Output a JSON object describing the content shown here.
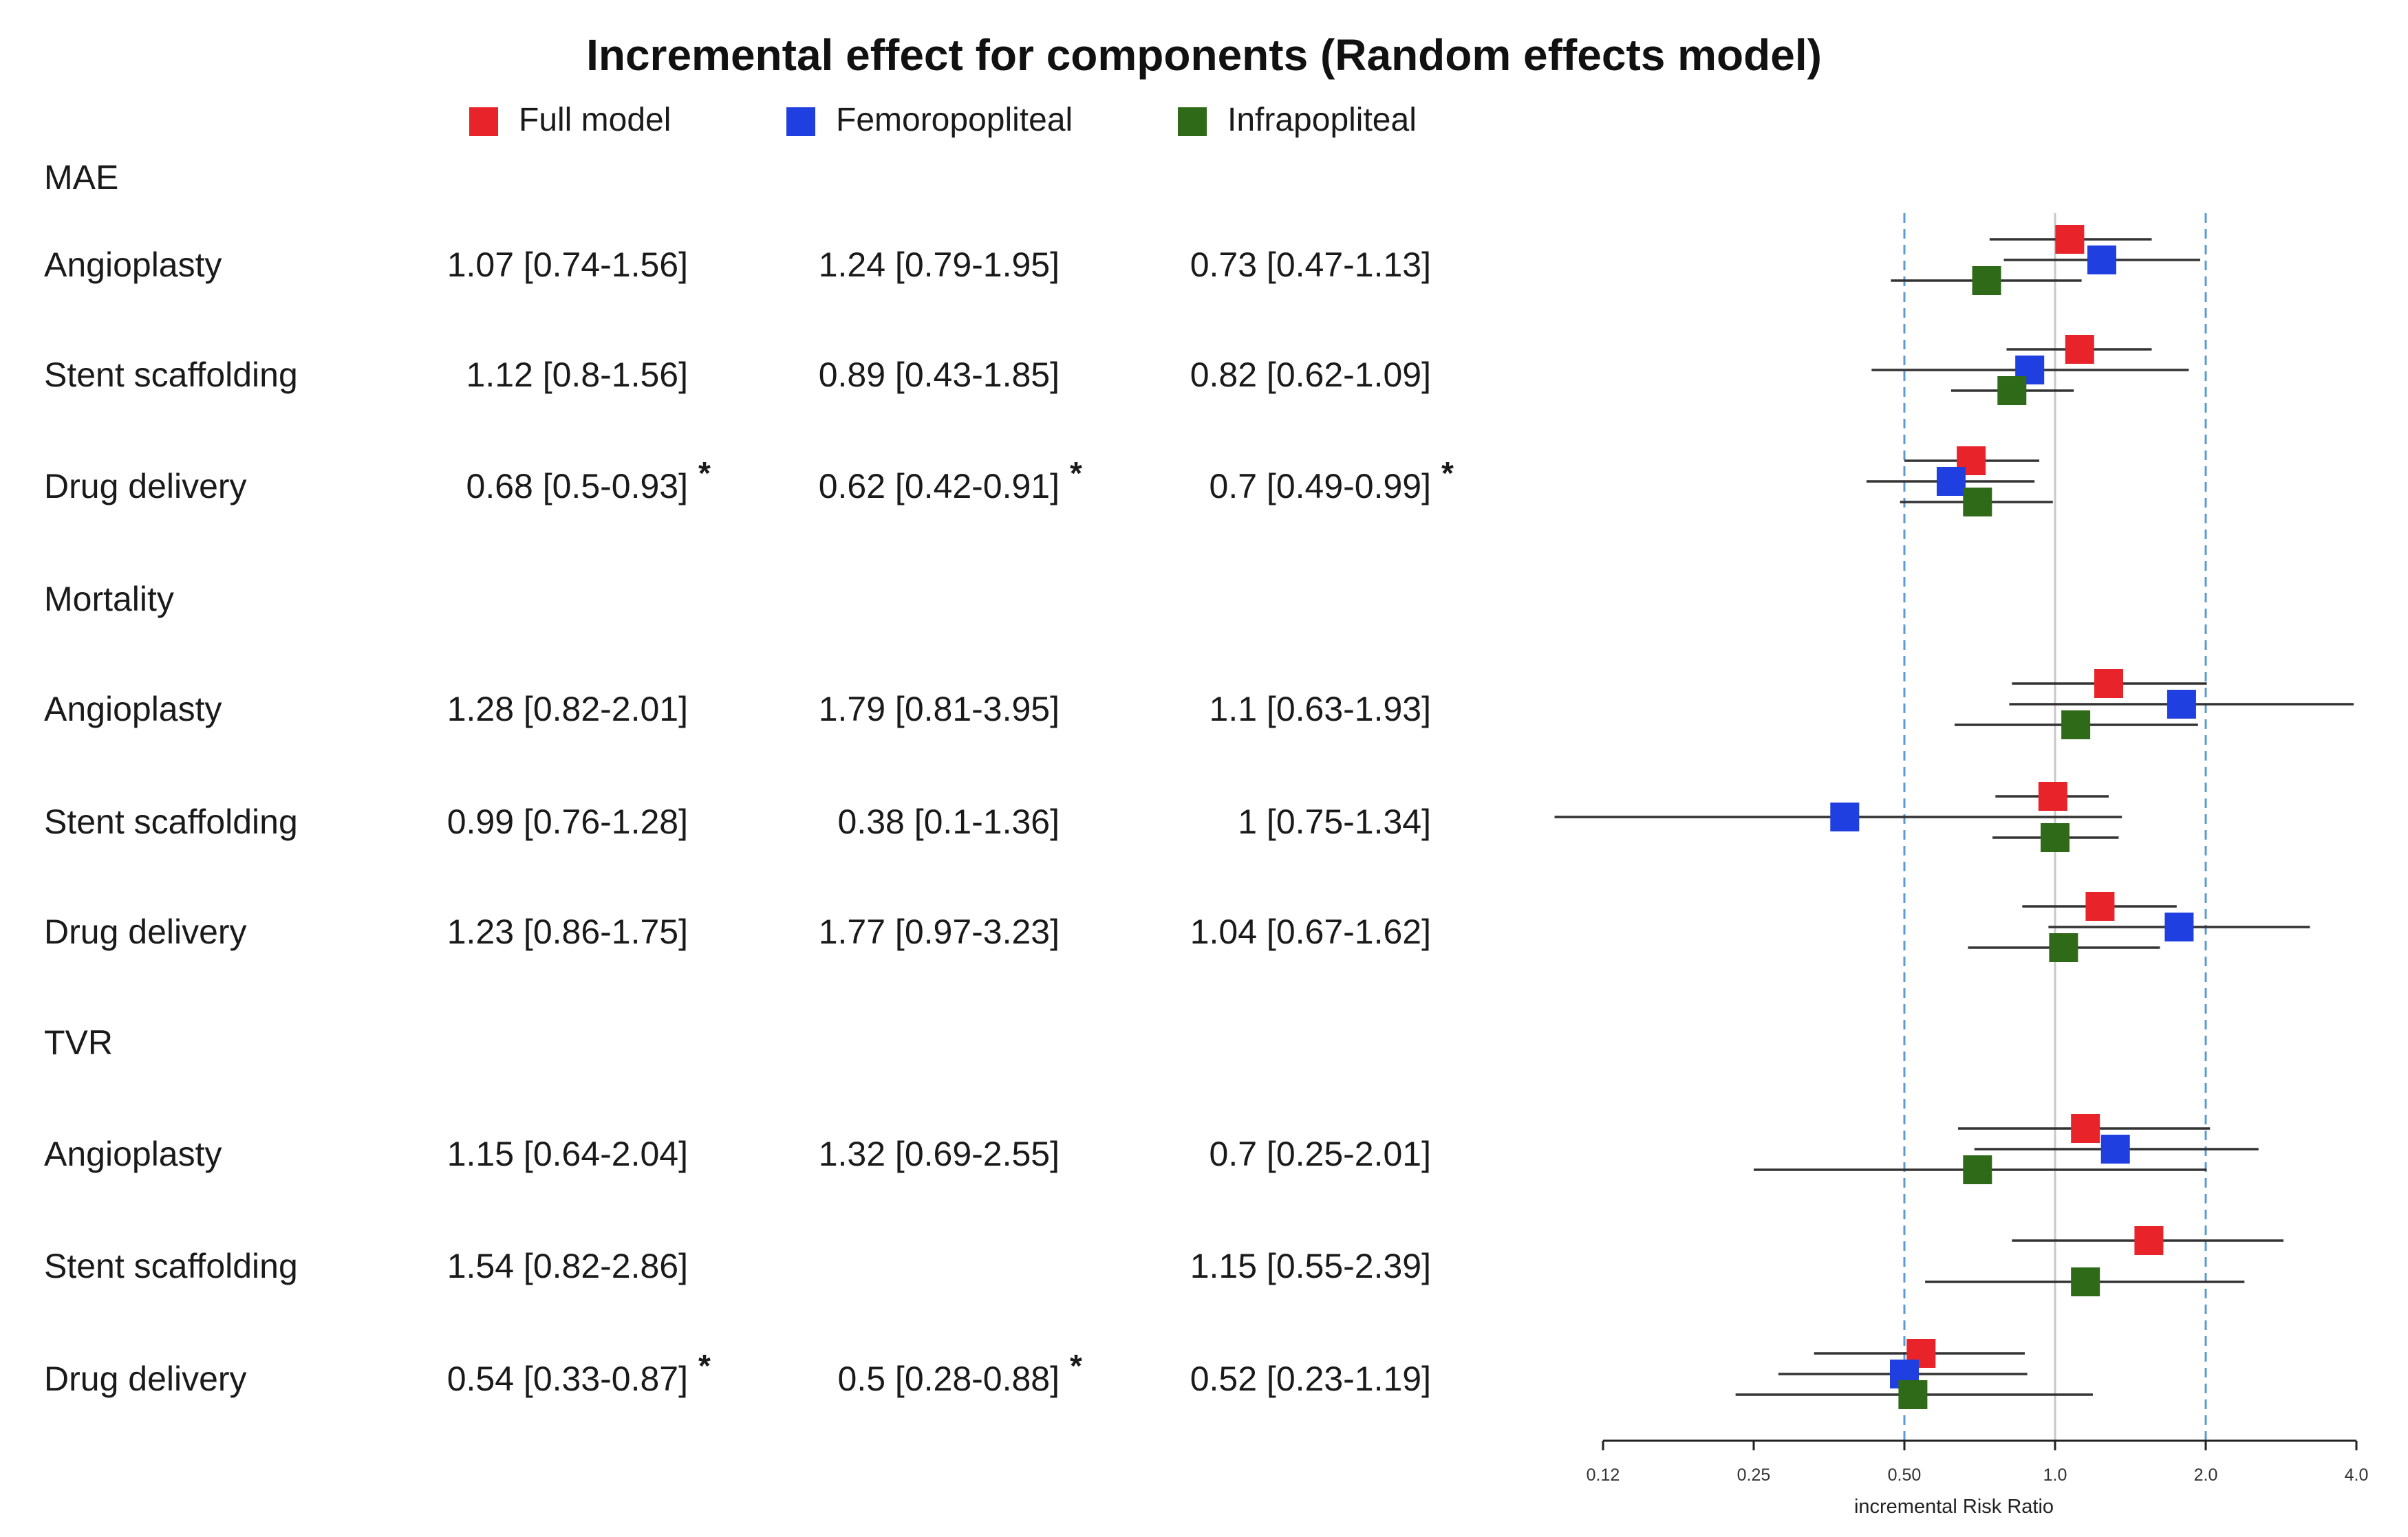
{
  "chart_data": {
    "type": "forest",
    "title": "Incremental effect for components (Random effects model)",
    "xlabel": "incremental Risk Ratio",
    "scale": "log2",
    "xlim": [
      0.125,
      4.0
    ],
    "ticks": [
      {
        "value": 0.125,
        "label": "0.12"
      },
      {
        "value": 0.25,
        "label": "0.25"
      },
      {
        "value": 0.5,
        "label": "0.50"
      },
      {
        "value": 1.0,
        "label": "1.0"
      },
      {
        "value": 2.0,
        "label": "2.0"
      },
      {
        "value": 4.0,
        "label": "4.0"
      }
    ],
    "reference_line": 1.0,
    "dashed_lines": [
      0.5,
      2.0
    ],
    "colors": {
      "full": "#e8242a",
      "femoro": "#1f3fe0",
      "infra": "#2e6a18"
    },
    "legend": [
      {
        "key": "full",
        "name": "Full model"
      },
      {
        "key": "femoro",
        "name": "Femoropopliteal"
      },
      {
        "key": "infra",
        "name": "Infrapopliteal"
      }
    ],
    "groups": [
      {
        "name": "MAE",
        "rows": [
          {
            "label": "Angioplasty",
            "full": {
              "text": "1.07 [0.74-1.56]",
              "est": 1.07,
              "lo": 0.74,
              "hi": 1.56,
              "sig": false
            },
            "femoro": {
              "text": "1.24 [0.79-1.95]",
              "est": 1.24,
              "lo": 0.79,
              "hi": 1.95,
              "sig": false
            },
            "infra": {
              "text": "0.73 [0.47-1.13]",
              "est": 0.73,
              "lo": 0.47,
              "hi": 1.13,
              "sig": false
            }
          },
          {
            "label": "Stent scaffolding",
            "full": {
              "text": "1.12 [0.8-1.56]",
              "est": 1.12,
              "lo": 0.8,
              "hi": 1.56,
              "sig": false
            },
            "femoro": {
              "text": "0.89 [0.43-1.85]",
              "est": 0.89,
              "lo": 0.43,
              "hi": 1.85,
              "sig": false
            },
            "infra": {
              "text": "0.82 [0.62-1.09]",
              "est": 0.82,
              "lo": 0.62,
              "hi": 1.09,
              "sig": false
            }
          },
          {
            "label": "Drug delivery",
            "full": {
              "text": "0.68 [0.5-0.93]",
              "est": 0.68,
              "lo": 0.5,
              "hi": 0.93,
              "sig": true
            },
            "femoro": {
              "text": "0.62 [0.42-0.91]",
              "est": 0.62,
              "lo": 0.42,
              "hi": 0.91,
              "sig": true
            },
            "infra": {
              "text": "0.7 [0.49-0.99]",
              "est": 0.7,
              "lo": 0.49,
              "hi": 0.99,
              "sig": true
            }
          }
        ]
      },
      {
        "name": "Mortality",
        "rows": [
          {
            "label": "Angioplasty",
            "full": {
              "text": "1.28 [0.82-2.01]",
              "est": 1.28,
              "lo": 0.82,
              "hi": 2.01,
              "sig": false
            },
            "femoro": {
              "text": "1.79 [0.81-3.95]",
              "est": 1.79,
              "lo": 0.81,
              "hi": 3.95,
              "sig": false
            },
            "infra": {
              "text": "1.1 [0.63-1.93]",
              "est": 1.1,
              "lo": 0.63,
              "hi": 1.93,
              "sig": false
            }
          },
          {
            "label": "Stent scaffolding",
            "full": {
              "text": "0.99 [0.76-1.28]",
              "est": 0.99,
              "lo": 0.76,
              "hi": 1.28,
              "sig": false
            },
            "femoro": {
              "text": "0.38 [0.1-1.36]",
              "est": 0.38,
              "lo": 0.1,
              "hi": 1.36,
              "sig": false
            },
            "infra": {
              "text": "1 [0.75-1.34]",
              "est": 1.0,
              "lo": 0.75,
              "hi": 1.34,
              "sig": false
            }
          },
          {
            "label": "Drug delivery",
            "full": {
              "text": "1.23 [0.86-1.75]",
              "est": 1.23,
              "lo": 0.86,
              "hi": 1.75,
              "sig": false
            },
            "femoro": {
              "text": "1.77 [0.97-3.23]",
              "est": 1.77,
              "lo": 0.97,
              "hi": 3.23,
              "sig": false
            },
            "infra": {
              "text": "1.04 [0.67-1.62]",
              "est": 1.04,
              "lo": 0.67,
              "hi": 1.62,
              "sig": false
            }
          }
        ]
      },
      {
        "name": "TVR",
        "rows": [
          {
            "label": "Angioplasty",
            "full": {
              "text": "1.15 [0.64-2.04]",
              "est": 1.15,
              "lo": 0.64,
              "hi": 2.04,
              "sig": false
            },
            "femoro": {
              "text": "1.32 [0.69-2.55]",
              "est": 1.32,
              "lo": 0.69,
              "hi": 2.55,
              "sig": false
            },
            "infra": {
              "text": "0.7 [0.25-2.01]",
              "est": 0.7,
              "lo": 0.25,
              "hi": 2.01,
              "sig": false
            }
          },
          {
            "label": "Stent scaffolding",
            "full": {
              "text": "1.54 [0.82-2.86]",
              "est": 1.54,
              "lo": 0.82,
              "hi": 2.86,
              "sig": false
            },
            "femoro": null,
            "infra": {
              "text": "1.15 [0.55-2.39]",
              "est": 1.15,
              "lo": 0.55,
              "hi": 2.39,
              "sig": false
            }
          },
          {
            "label": "Drug delivery",
            "full": {
              "text": "0.54 [0.33-0.87]",
              "est": 0.54,
              "lo": 0.33,
              "hi": 0.87,
              "sig": true
            },
            "femoro": {
              "text": "0.5 [0.28-0.88]",
              "est": 0.5,
              "lo": 0.28,
              "hi": 0.88,
              "sig": true
            },
            "infra": {
              "text": "0.52 [0.23-1.19]",
              "est": 0.52,
              "lo": 0.23,
              "hi": 1.19,
              "sig": false
            }
          }
        ]
      }
    ],
    "significance_marker": "*"
  }
}
